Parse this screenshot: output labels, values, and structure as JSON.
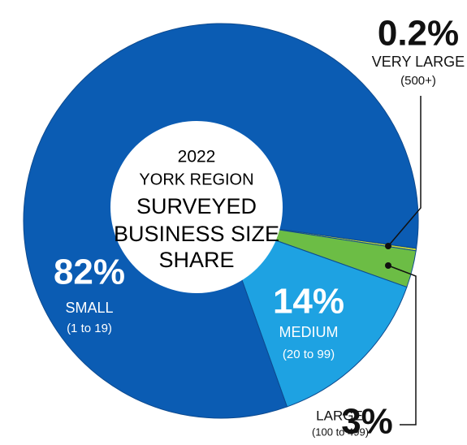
{
  "chart_data": {
    "type": "pie",
    "title": [
      "2022",
      "YORK REGION",
      "SURVEYED",
      "BUSINESS SIZE",
      "SHARE"
    ],
    "categories": [
      "VERY LARGE",
      "LARGE",
      "MEDIUM",
      "SMALL"
    ],
    "ranges": [
      "(500+)",
      "(100 to 499)",
      "(20 to 99)",
      "(1 to 19)"
    ],
    "values": [
      0.2,
      3,
      14,
      82
    ],
    "value_labels": [
      "0.2%",
      "3%",
      "14%",
      "82%"
    ],
    "colors": [
      "#cbd932",
      "#6cbd45",
      "#1ea2e2",
      "#0b5cb3"
    ]
  }
}
